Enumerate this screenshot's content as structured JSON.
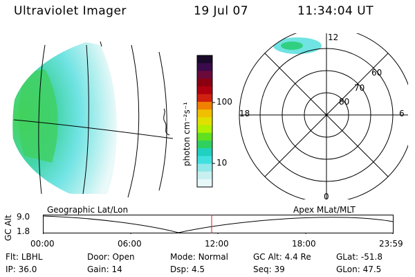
{
  "header": {
    "title": "Ultraviolet Imager",
    "date": "19 Jul 07",
    "time": "11:34:04 UT"
  },
  "colorbar": {
    "label": "photon cm⁻²s⁻¹",
    "ticks": [
      "100",
      "10"
    ],
    "colors": [
      "#1a0a2a",
      "#3a0a4a",
      "#6a0a3a",
      "#8a0010",
      "#b00010",
      "#d02010",
      "#f08000",
      "#f0c000",
      "#e0e000",
      "#b0f000",
      "#60e020",
      "#30d060",
      "#20d0c0",
      "#40e0e0",
      "#90e8e8",
      "#c8f0f0",
      "#e8f8f8"
    ]
  },
  "polar": {
    "mlt_labels": {
      "top": "12",
      "left": "18",
      "right": "6",
      "bottom": "0"
    },
    "lat_labels": [
      "60",
      "70",
      "80"
    ]
  },
  "timeline": {
    "y_label": "GC Alt",
    "y_ticks": [
      "9.0",
      "1.8"
    ],
    "left_caption": "Geographic Lat/Lon",
    "right_caption": "Apex  MLat/MLT",
    "x_ticks": [
      "00:00",
      "06:00",
      "12:00",
      "18:00",
      "23:59"
    ]
  },
  "footer": {
    "row1": [
      {
        "label": "Flt:",
        "value": "LBHL"
      },
      {
        "label": "Door:",
        "value": "Open"
      },
      {
        "label": "Mode:",
        "value": "Normal"
      },
      {
        "label": "GC Alt:",
        "value": "4.4 Re"
      },
      {
        "label": "GLat:",
        "value": "-51.8"
      }
    ],
    "row2": [
      {
        "label": "IP:",
        "value": "36.0"
      },
      {
        "label": "Gain:",
        "value": "14"
      },
      {
        "label": "Dsp:",
        "value": "4.5"
      },
      {
        "label": "Seq:",
        "value": "39"
      },
      {
        "label": "GLon:",
        "value": "47.5"
      }
    ]
  }
}
